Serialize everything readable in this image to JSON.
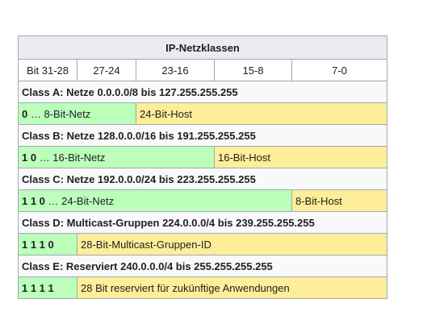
{
  "title": "IP-Netzklassen",
  "headers": [
    "Bit 31-28",
    "27-24",
    "23-16",
    "15-8",
    "7-0"
  ],
  "classes": [
    {
      "title": "Class A: Netze 0.0.0.0/8 bis 127.255.255.255",
      "net_bits": "0",
      "net_text": " … 8-Bit-Netz",
      "host_text": "24-Bit-Host"
    },
    {
      "title": "Class B: Netze 128.0.0.0/16 bis 191.255.255.255",
      "net_bits": "1 0",
      "net_text": " … 16-Bit-Netz",
      "host_text": "16-Bit-Host"
    },
    {
      "title": "Class C: Netze 192.0.0.0/24 bis 223.255.255.255",
      "net_bits": "1 1 0",
      "net_text": " … 24-Bit-Netz",
      "host_text": "8-Bit-Host"
    },
    {
      "title": "Class D: Multicast-Gruppen 224.0.0.0/4 bis 239.255.255.255",
      "net_bits": "1 1 1 0",
      "host_text": "28-Bit-Multicast-Gruppen-ID"
    },
    {
      "title": "Class E: Reserviert 240.0.0.0/4 bis 255.255.255.255",
      "net_bits": "1 1 1 1",
      "host_text": "28 Bit reserviert für zukünftige Anwendungen"
    }
  ],
  "colors": {
    "network": "#bbffbb",
    "host": "#ffee99",
    "header": "#eaecf0"
  }
}
